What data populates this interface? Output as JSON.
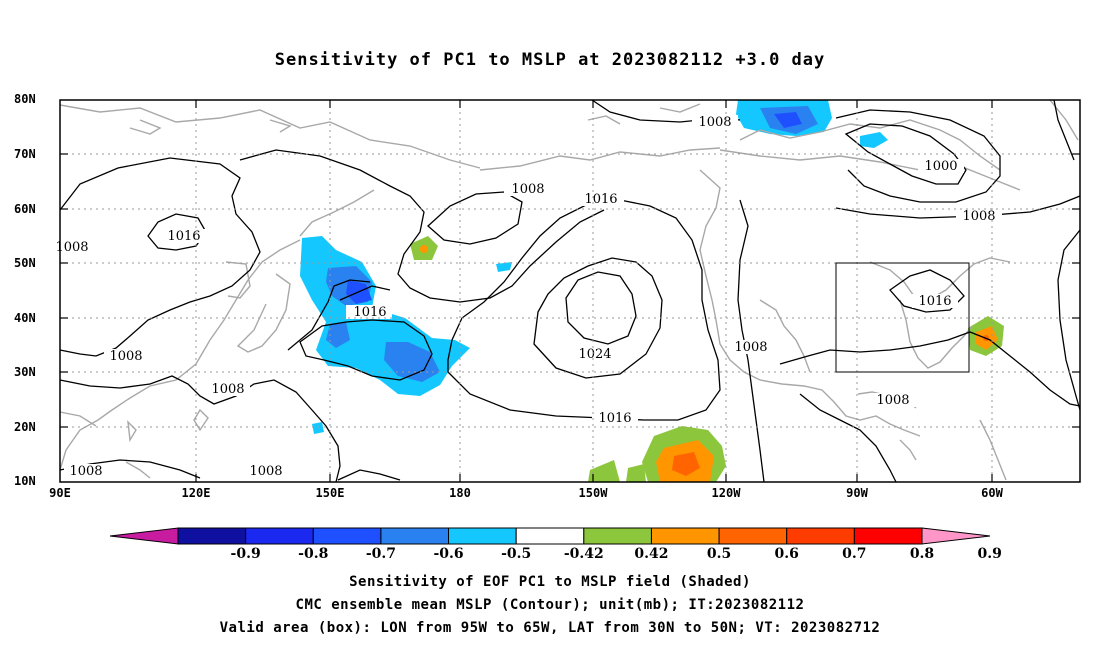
{
  "title": "Sensitivity of PC1 to MSLP at 2023082112 +3.0 day",
  "lat_labels": [
    "80N",
    "70N",
    "60N",
    "50N",
    "40N",
    "30N",
    "20N",
    "10N"
  ],
  "lon_labels": [
    "90E",
    "120E",
    "150E",
    "180",
    "150W",
    "120W",
    "90W",
    "60W"
  ],
  "contour_labels": [
    "1008",
    "1016",
    "1024",
    "1000"
  ],
  "colorbar": {
    "ticks": [
      "-0.9",
      "-0.8",
      "-0.7",
      "-0.6",
      "-0.5",
      "-0.42",
      "0.42",
      "0.5",
      "0.6",
      "0.7",
      "0.8",
      "0.9"
    ],
    "colors": [
      "#c81ca0",
      "#1010a0",
      "#1a28f0",
      "#1f50ff",
      "#2a82f0",
      "#14c8ff",
      "#ffffff",
      "#8cc63c",
      "#ff9600",
      "#ff6400",
      "#ff3c00",
      "#ff0000",
      "#ff96c8"
    ]
  },
  "captions": [
    "Sensitivity of EOF PC1 to MSLP field (Shaded)",
    "CMC ensemble mean MSLP (Contour); unit(mb); IT:2023082112",
    "Valid area (box): LON from 95W to 65W, LAT from 30N to 50N; VT: 2023082712"
  ]
}
